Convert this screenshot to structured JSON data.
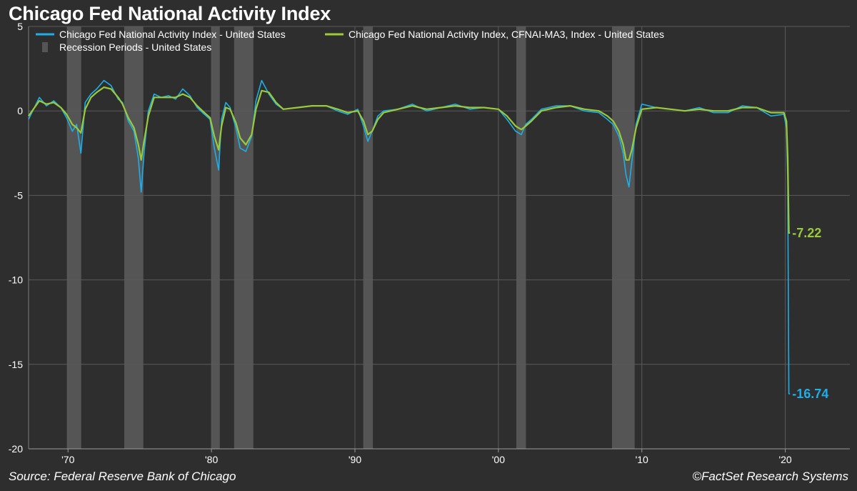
{
  "chart_data": {
    "type": "line",
    "title": "Chicago Fed National Activity Index",
    "source": "Source: Federal Reserve Bank of Chicago",
    "credit": "©FactSet Research Systems",
    "xlim": [
      1967.25,
      2024.5
    ],
    "ylim": [
      -20,
      5
    ],
    "y_ticks": [
      5,
      0,
      -5,
      -10,
      -15,
      -20
    ],
    "y_tick_labels": [
      "5",
      "0",
      "-5",
      "-10",
      "-15",
      "-20"
    ],
    "x_ticks": [
      1970,
      1980,
      1990,
      2000,
      2010,
      2020
    ],
    "x_tick_labels": [
      "'70",
      "'80",
      "'90",
      "'00",
      "'10",
      "'20"
    ],
    "grid": true,
    "legend_position": "top-left",
    "colors": {
      "background": "#2e2e2e",
      "grid": "#5a5a5a",
      "recession": "#555555",
      "cfnai": "#1eaee8",
      "ma3": "#9ac93a"
    },
    "series": [
      {
        "name": "Chicago Fed National Activity Index - United States",
        "color": "#1eaee8",
        "x": [
          1967.25,
          1968,
          1968.5,
          1969,
          1969.5,
          1969.9,
          1970.3,
          1970.6,
          1970.9,
          1971.2,
          1971.6,
          1972,
          1972.5,
          1973,
          1973.5,
          1973.8,
          1974.2,
          1974.6,
          1974.9,
          1975.1,
          1975.3,
          1975.6,
          1976,
          1976.5,
          1977,
          1977.5,
          1978,
          1978.5,
          1979,
          1979.5,
          1979.9,
          1980.2,
          1980.5,
          1980.7,
          1981,
          1981.3,
          1981.7,
          1982,
          1982.4,
          1982.8,
          1983.1,
          1983.5,
          1984,
          1984.5,
          1985,
          1986,
          1987,
          1988,
          1988.8,
          1989.5,
          1990.2,
          1990.6,
          1990.9,
          1991.2,
          1991.6,
          1992,
          1993,
          1994,
          1995,
          1996,
          1997,
          1998,
          1999,
          2000,
          2000.6,
          2001.2,
          2001.6,
          2001.9,
          2002.3,
          2003,
          2004,
          2005,
          2006,
          2007,
          2007.6,
          2008.0,
          2008.4,
          2008.7,
          2008.9,
          2009.1,
          2009.3,
          2009.6,
          2010,
          2011,
          2012,
          2013,
          2014,
          2015,
          2016,
          2017,
          2018,
          2019,
          2019.9,
          2020.08,
          2020.17,
          2020.25,
          2020.33
        ],
        "values": [
          -0.5,
          0.8,
          0.3,
          0.6,
          0.2,
          -0.4,
          -1.2,
          -0.8,
          -2.5,
          0.5,
          1.0,
          1.3,
          1.8,
          1.5,
          0.7,
          0.5,
          -0.6,
          -1.2,
          -2.8,
          -4.8,
          -2.5,
          0.0,
          1.0,
          0.8,
          0.9,
          0.7,
          1.3,
          0.9,
          0.2,
          -0.2,
          -0.5,
          -2.2,
          -3.5,
          -0.5,
          0.5,
          0.2,
          -1.0,
          -2.2,
          -2.4,
          -1.5,
          0.6,
          1.8,
          1.0,
          0.4,
          0.1,
          0.2,
          0.3,
          0.3,
          0.0,
          -0.2,
          0.1,
          -0.9,
          -1.8,
          -1.2,
          -0.3,
          0.0,
          0.1,
          0.4,
          0.0,
          0.2,
          0.4,
          0.1,
          0.2,
          0.1,
          -0.5,
          -1.2,
          -1.4,
          -0.8,
          -0.5,
          0.1,
          0.3,
          0.3,
          0.0,
          -0.1,
          -0.5,
          -0.8,
          -1.5,
          -2.5,
          -3.8,
          -4.5,
          -3.0,
          -0.8,
          0.4,
          0.2,
          0.1,
          0.0,
          0.2,
          -0.1,
          -0.1,
          0.3,
          0.2,
          -0.3,
          -0.2,
          -1.0,
          -4.0,
          -16.74,
          -16.74
        ]
      },
      {
        "name": "Chicago Fed National Activity Index, CFNAI-MA3, Index - United States",
        "color": "#9ac93a",
        "x": [
          1967.25,
          1968,
          1968.5,
          1969,
          1969.5,
          1969.9,
          1970.3,
          1970.6,
          1970.9,
          1971.2,
          1971.6,
          1972,
          1972.5,
          1973,
          1973.5,
          1973.8,
          1974.2,
          1974.6,
          1974.9,
          1975.1,
          1975.3,
          1975.6,
          1976,
          1976.5,
          1977,
          1977.5,
          1978,
          1978.5,
          1979,
          1979.5,
          1979.9,
          1980.2,
          1980.5,
          1980.7,
          1981,
          1981.3,
          1981.7,
          1982,
          1982.4,
          1982.8,
          1983.1,
          1983.5,
          1984,
          1984.5,
          1985,
          1986,
          1987,
          1988,
          1988.8,
          1989.5,
          1990.2,
          1990.6,
          1990.9,
          1991.2,
          1991.6,
          1992,
          1993,
          1994,
          1995,
          1996,
          1997,
          1998,
          1999,
          2000,
          2000.6,
          2001.2,
          2001.6,
          2001.9,
          2002.3,
          2003,
          2004,
          2005,
          2006,
          2007,
          2007.6,
          2008.0,
          2008.4,
          2008.7,
          2008.9,
          2009.1,
          2009.3,
          2009.6,
          2010,
          2011,
          2012,
          2013,
          2014,
          2015,
          2016,
          2017,
          2018,
          2019,
          2019.9,
          2020.08,
          2020.17,
          2020.25,
          2020.33
        ],
        "values": [
          -0.3,
          0.6,
          0.4,
          0.5,
          0.2,
          -0.2,
          -0.8,
          -1.0,
          -1.3,
          0.1,
          0.8,
          1.1,
          1.4,
          1.3,
          0.8,
          0.4,
          -0.4,
          -1.0,
          -2.0,
          -2.9,
          -1.8,
          -0.3,
          0.8,
          0.8,
          0.8,
          0.8,
          1.0,
          0.8,
          0.3,
          -0.1,
          -0.4,
          -1.5,
          -2.3,
          -0.9,
          0.2,
          0.1,
          -0.7,
          -1.6,
          -2.0,
          -1.4,
          0.1,
          1.2,
          1.1,
          0.5,
          0.1,
          0.2,
          0.3,
          0.3,
          0.1,
          -0.1,
          0.0,
          -0.6,
          -1.4,
          -1.2,
          -0.5,
          -0.1,
          0.1,
          0.3,
          0.1,
          0.2,
          0.3,
          0.2,
          0.2,
          0.1,
          -0.3,
          -0.9,
          -1.1,
          -0.9,
          -0.6,
          0.0,
          0.2,
          0.3,
          0.1,
          0.0,
          -0.3,
          -0.6,
          -1.2,
          -2.0,
          -2.9,
          -2.9,
          -2.3,
          -1.0,
          0.1,
          0.2,
          0.1,
          0.0,
          0.1,
          0.0,
          0.0,
          0.2,
          0.2,
          -0.1,
          -0.1,
          -0.6,
          -2.8,
          -7.22,
          -7.22
        ]
      }
    ],
    "recessions": [
      {
        "start": 1969.92,
        "end": 1970.92
      },
      {
        "start": 1973.92,
        "end": 1975.25
      },
      {
        "start": 1980.0,
        "end": 1980.58
      },
      {
        "start": 1981.58,
        "end": 1982.92
      },
      {
        "start": 1990.58,
        "end": 1991.25
      },
      {
        "start": 2001.25,
        "end": 2001.92
      },
      {
        "start": 2007.92,
        "end": 2009.5
      }
    ],
    "legend": [
      {
        "label": "Chicago Fed National Activity Index - United States",
        "color": "#1eaee8",
        "kind": "line"
      },
      {
        "label": "Chicago Fed National Activity Index, CFNAI-MA3, Index - United States",
        "color": "#9ac93a",
        "kind": "line"
      },
      {
        "label": "Recession Periods - United States",
        "color": "#555555",
        "kind": "bar"
      }
    ],
    "end_labels": [
      {
        "text": "-7.22",
        "value": -7.22,
        "color": "#9ac93a"
      },
      {
        "text": "-16.74",
        "value": -16.74,
        "color": "#1eaee8"
      }
    ]
  }
}
